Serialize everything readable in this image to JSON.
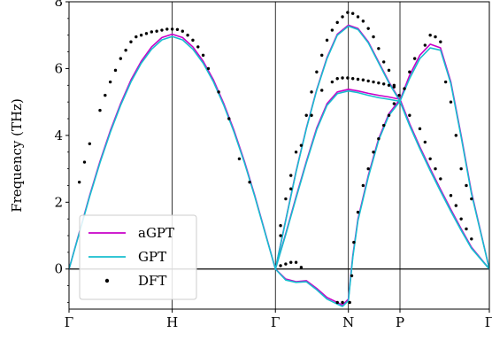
{
  "chart_data": {
    "type": "line",
    "title": "",
    "xlabel": "",
    "ylabel": "Frequency (THz)",
    "ylim": [
      -1.2,
      8
    ],
    "yticks": [
      0,
      2,
      4,
      6,
      8
    ],
    "xticks": [
      {
        "label": "Γ",
        "x": 0
      },
      {
        "label": "H",
        "x": 1
      },
      {
        "label": "Γ",
        "x": 2
      },
      {
        "label": "N",
        "x": 2.7071
      },
      {
        "label": "P",
        "x": 3.2071
      },
      {
        "label": "Γ",
        "x": 4.0731
      }
    ],
    "xlim": [
      0,
      4.0731
    ],
    "zero_line": true,
    "vertical_lines_at_ticks": true,
    "legend": {
      "position": "lower-left",
      "entries": [
        {
          "label": "aGPT",
          "style": "line",
          "color": "#c800c8"
        },
        {
          "label": "GPT",
          "style": "line",
          "color": "#17becf"
        },
        {
          "label": "DFT",
          "style": "dot",
          "color": "#000000"
        }
      ]
    },
    "series": [
      {
        "name": "aGPT",
        "color": "#c800c8",
        "segments": [
          [
            [
              0,
              0
            ],
            [
              0.1,
              1.1
            ],
            [
              0.2,
              2.2
            ],
            [
              0.3,
              3.22
            ],
            [
              0.4,
              4.14
            ],
            [
              0.5,
              4.95
            ],
            [
              0.6,
              5.66
            ],
            [
              0.7,
              6.22
            ],
            [
              0.8,
              6.65
            ],
            [
              0.9,
              6.93
            ],
            [
              1,
              7.03
            ],
            [
              1.1,
              6.93
            ],
            [
              1.2,
              6.65
            ],
            [
              1.3,
              6.22
            ],
            [
              1.4,
              5.66
            ],
            [
              1.5,
              4.95
            ],
            [
              1.6,
              4.14
            ],
            [
              1.7,
              3.22
            ],
            [
              1.8,
              2.2
            ],
            [
              1.9,
              1.1
            ],
            [
              2,
              0
            ]
          ],
          [
            [
              2,
              0
            ],
            [
              2.1,
              1.47
            ],
            [
              2.2,
              2.92
            ],
            [
              2.3,
              4.22
            ],
            [
              2.4,
              5.37
            ],
            [
              2.5,
              6.33
            ],
            [
              2.6,
              7.03
            ],
            [
              2.7071,
              7.3
            ],
            [
              2.8,
              7.2
            ],
            [
              2.9,
              6.8
            ],
            [
              3.0,
              6.2
            ],
            [
              3.1,
              5.6
            ],
            [
              3.2071,
              5.05
            ],
            [
              3.3,
              5.8
            ],
            [
              3.4,
              6.4
            ],
            [
              3.5,
              6.73
            ],
            [
              3.6,
              6.62
            ],
            [
              3.7,
              5.6
            ],
            [
              3.8,
              4.0
            ],
            [
              3.9,
              2.3
            ],
            [
              4.0731,
              0
            ]
          ],
          [
            [
              2,
              0
            ],
            [
              2.1,
              1.06
            ],
            [
              2.2,
              2.16
            ],
            [
              2.3,
              3.22
            ],
            [
              2.4,
              4.22
            ],
            [
              2.5,
              4.95
            ],
            [
              2.6,
              5.3
            ],
            [
              2.7071,
              5.38
            ],
            [
              2.8,
              5.33
            ],
            [
              2.9,
              5.26
            ],
            [
              3.0,
              5.2
            ],
            [
              3.1,
              5.15
            ],
            [
              3.2071,
              5.08
            ],
            [
              3.3,
              4.35
            ],
            [
              3.4,
              3.65
            ],
            [
              3.5,
              3.0
            ],
            [
              3.6,
              2.38
            ],
            [
              3.7,
              1.78
            ],
            [
              3.8,
              1.2
            ],
            [
              3.9,
              0.65
            ],
            [
              4.0731,
              0
            ]
          ],
          [
            [
              2,
              0
            ],
            [
              2.1,
              -0.3
            ],
            [
              2.2,
              -0.38
            ],
            [
              2.3,
              -0.35
            ],
            [
              2.4,
              -0.58
            ],
            [
              2.5,
              -0.85
            ],
            [
              2.6,
              -1.0
            ],
            [
              2.65,
              -1.08
            ],
            [
              2.7071,
              -0.9
            ],
            [
              2.75,
              0.4
            ],
            [
              2.8,
              1.5
            ],
            [
              2.9,
              2.8
            ],
            [
              3.0,
              3.9
            ],
            [
              3.1,
              4.65
            ],
            [
              3.2071,
              5.08
            ],
            [
              3.3,
              4.35
            ],
            [
              3.4,
              3.65
            ],
            [
              3.5,
              3.0
            ],
            [
              3.6,
              2.38
            ],
            [
              3.7,
              1.78
            ],
            [
              3.8,
              1.2
            ],
            [
              3.9,
              0.65
            ],
            [
              4.0731,
              0
            ]
          ]
        ]
      },
      {
        "name": "GPT",
        "color": "#17becf",
        "segments": [
          [
            [
              0,
              0
            ],
            [
              0.1,
              1.08
            ],
            [
              0.2,
              2.17
            ],
            [
              0.3,
              3.18
            ],
            [
              0.4,
              4.09
            ],
            [
              0.5,
              4.9
            ],
            [
              0.6,
              5.6
            ],
            [
              0.7,
              6.16
            ],
            [
              0.8,
              6.58
            ],
            [
              0.9,
              6.86
            ],
            [
              1,
              6.96
            ],
            [
              1.1,
              6.86
            ],
            [
              1.2,
              6.58
            ],
            [
              1.3,
              6.16
            ],
            [
              1.4,
              5.6
            ],
            [
              1.5,
              4.9
            ],
            [
              1.6,
              4.09
            ],
            [
              1.7,
              3.18
            ],
            [
              1.8,
              2.17
            ],
            [
              1.9,
              1.08
            ],
            [
              2,
              0
            ]
          ],
          [
            [
              2,
              0
            ],
            [
              2.1,
              1.45
            ],
            [
              2.2,
              2.9
            ],
            [
              2.3,
              4.2
            ],
            [
              2.4,
              5.35
            ],
            [
              2.5,
              6.3
            ],
            [
              2.6,
              7.0
            ],
            [
              2.7071,
              7.27
            ],
            [
              2.8,
              7.17
            ],
            [
              2.9,
              6.77
            ],
            [
              3.0,
              6.17
            ],
            [
              3.1,
              5.57
            ],
            [
              3.2071,
              5.02
            ],
            [
              3.3,
              5.7
            ],
            [
              3.4,
              6.3
            ],
            [
              3.5,
              6.62
            ],
            [
              3.6,
              6.55
            ],
            [
              3.7,
              5.55
            ],
            [
              3.8,
              3.95
            ],
            [
              3.9,
              2.25
            ],
            [
              4.0731,
              0
            ]
          ],
          [
            [
              2,
              0
            ],
            [
              2.1,
              1.03
            ],
            [
              2.2,
              2.12
            ],
            [
              2.3,
              3.18
            ],
            [
              2.4,
              4.17
            ],
            [
              2.5,
              4.9
            ],
            [
              2.6,
              5.25
            ],
            [
              2.7071,
              5.33
            ],
            [
              2.8,
              5.28
            ],
            [
              2.9,
              5.2
            ],
            [
              3.0,
              5.13
            ],
            [
              3.1,
              5.08
            ],
            [
              3.2071,
              5.02
            ],
            [
              3.3,
              4.3
            ],
            [
              3.4,
              3.6
            ],
            [
              3.5,
              2.95
            ],
            [
              3.6,
              2.33
            ],
            [
              3.7,
              1.73
            ],
            [
              3.8,
              1.16
            ],
            [
              3.9,
              0.62
            ],
            [
              4.0731,
              0
            ]
          ],
          [
            [
              2,
              0
            ],
            [
              2.1,
              -0.33
            ],
            [
              2.2,
              -0.4
            ],
            [
              2.3,
              -0.38
            ],
            [
              2.4,
              -0.62
            ],
            [
              2.5,
              -0.9
            ],
            [
              2.6,
              -1.05
            ],
            [
              2.65,
              -1.12
            ],
            [
              2.7071,
              -0.95
            ],
            [
              2.75,
              0.35
            ],
            [
              2.8,
              1.45
            ],
            [
              2.9,
              2.75
            ],
            [
              3.0,
              3.85
            ],
            [
              3.1,
              4.6
            ],
            [
              3.2071,
              5.02
            ],
            [
              3.3,
              4.3
            ],
            [
              3.4,
              3.6
            ],
            [
              3.5,
              2.95
            ],
            [
              3.6,
              2.33
            ],
            [
              3.7,
              1.73
            ],
            [
              3.8,
              1.16
            ],
            [
              3.9,
              0.62
            ],
            [
              4.0731,
              0
            ]
          ]
        ]
      },
      {
        "name": "DFT",
        "color": "#000000",
        "points": [
          [
            0.1,
            2.6
          ],
          [
            0.15,
            3.2
          ],
          [
            0.2,
            3.75
          ],
          [
            0.3,
            4.75
          ],
          [
            0.35,
            5.2
          ],
          [
            0.4,
            5.6
          ],
          [
            0.45,
            5.95
          ],
          [
            0.5,
            6.3
          ],
          [
            0.55,
            6.55
          ],
          [
            0.6,
            6.8
          ],
          [
            0.65,
            6.95
          ],
          [
            0.7,
            7.0
          ],
          [
            0.75,
            7.05
          ],
          [
            0.8,
            7.1
          ],
          [
            0.85,
            7.12
          ],
          [
            0.9,
            7.15
          ],
          [
            0.95,
            7.18
          ],
          [
            1.0,
            7.18
          ],
          [
            1.05,
            7.17
          ],
          [
            1.1,
            7.12
          ],
          [
            1.15,
            7.0
          ],
          [
            1.2,
            6.85
          ],
          [
            1.25,
            6.65
          ],
          [
            1.3,
            6.4
          ],
          [
            1.35,
            6.0
          ],
          [
            1.45,
            5.3
          ],
          [
            1.55,
            4.5
          ],
          [
            1.65,
            3.3
          ],
          [
            1.75,
            2.6
          ],
          [
            2.05,
            0.1
          ],
          [
            2.1,
            0.15
          ],
          [
            2.15,
            0.2
          ],
          [
            2.2,
            0.2
          ],
          [
            2.25,
            0.05
          ],
          [
            2.05,
            1.3
          ],
          [
            2.1,
            2.1
          ],
          [
            2.15,
            2.8
          ],
          [
            2.2,
            3.5
          ],
          [
            2.3,
            4.6
          ],
          [
            2.35,
            5.3
          ],
          [
            2.4,
            5.9
          ],
          [
            2.45,
            6.4
          ],
          [
            2.5,
            6.85
          ],
          [
            2.55,
            7.15
          ],
          [
            2.6,
            7.38
          ],
          [
            2.65,
            7.55
          ],
          [
            2.7,
            7.68
          ],
          [
            2.75,
            7.65
          ],
          [
            2.8,
            7.55
          ],
          [
            2.85,
            7.42
          ],
          [
            2.9,
            7.2
          ],
          [
            2.95,
            6.95
          ],
          [
            3.0,
            6.6
          ],
          [
            3.05,
            6.2
          ],
          [
            3.1,
            5.95
          ],
          [
            3.15,
            5.5
          ],
          [
            2.05,
            1.0
          ],
          [
            2.15,
            2.4
          ],
          [
            2.25,
            3.7
          ],
          [
            2.35,
            4.6
          ],
          [
            2.45,
            5.35
          ],
          [
            2.55,
            5.6
          ],
          [
            2.6,
            5.7
          ],
          [
            2.65,
            5.72
          ],
          [
            2.7,
            5.72
          ],
          [
            2.75,
            5.7
          ],
          [
            2.8,
            5.68
          ],
          [
            2.85,
            5.66
          ],
          [
            2.9,
            5.63
          ],
          [
            2.95,
            5.6
          ],
          [
            3.0,
            5.57
          ],
          [
            3.05,
            5.54
          ],
          [
            3.1,
            5.5
          ],
          [
            3.15,
            5.45
          ],
          [
            2.72,
            -1.0
          ],
          [
            2.74,
            -0.2
          ],
          [
            2.76,
            0.8
          ],
          [
            2.8,
            1.7
          ],
          [
            2.85,
            2.5
          ],
          [
            2.9,
            3.0
          ],
          [
            2.95,
            3.5
          ],
          [
            3.0,
            3.9
          ],
          [
            3.05,
            4.3
          ],
          [
            3.1,
            4.6
          ],
          [
            3.15,
            4.95
          ],
          [
            3.2,
            5.2
          ],
          [
            3.25,
            5.4
          ],
          [
            3.3,
            5.9
          ],
          [
            3.35,
            6.3
          ],
          [
            3.45,
            6.7
          ],
          [
            3.5,
            7.0
          ],
          [
            3.55,
            6.95
          ],
          [
            3.6,
            6.8
          ],
          [
            3.65,
            5.6
          ],
          [
            3.7,
            5.0
          ],
          [
            3.75,
            4.0
          ],
          [
            3.8,
            3.0
          ],
          [
            3.85,
            2.5
          ],
          [
            3.9,
            2.1
          ],
          [
            3.3,
            4.6
          ],
          [
            3.4,
            4.2
          ],
          [
            3.45,
            3.8
          ],
          [
            3.5,
            3.3
          ],
          [
            3.55,
            3.0
          ],
          [
            3.6,
            2.7
          ],
          [
            3.7,
            2.2
          ],
          [
            3.75,
            1.9
          ],
          [
            3.8,
            1.5
          ],
          [
            3.85,
            1.2
          ],
          [
            3.9,
            0.9
          ],
          [
            2.6,
            -1.0
          ],
          [
            2.65,
            -1.0
          ]
        ]
      }
    ]
  }
}
